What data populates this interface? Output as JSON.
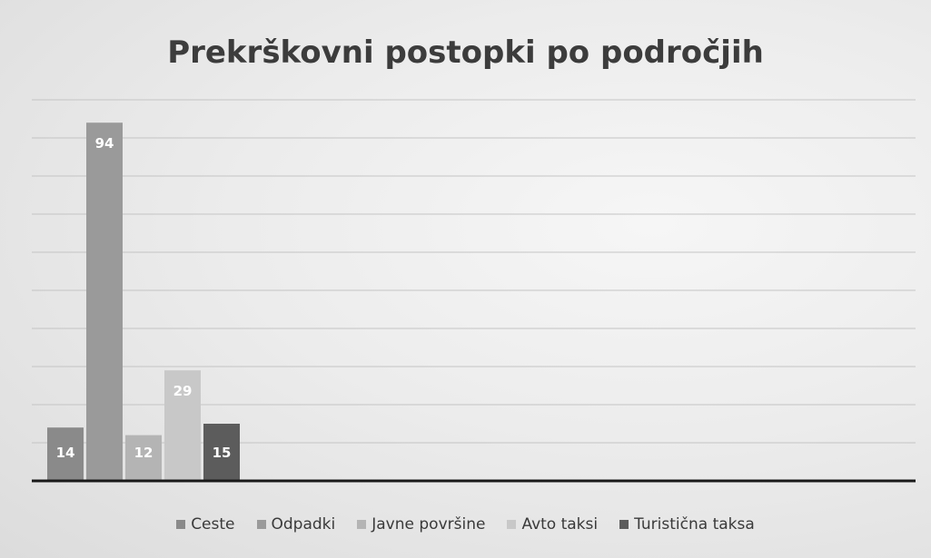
{
  "chart_data": {
    "type": "bar",
    "title": "Prekrškovni postopki po področjih",
    "xlabel": "",
    "ylabel": "",
    "ylim": [
      0,
      100
    ],
    "grid": true,
    "legend_position": "bottom",
    "categories": [
      ""
    ],
    "series": [
      {
        "name": "Ceste",
        "values": [
          14
        ],
        "color": "#8a8a8a"
      },
      {
        "name": "Odpadki",
        "values": [
          94
        ],
        "color": "#9a9a9a"
      },
      {
        "name": "Javne površine",
        "values": [
          12
        ],
        "color": "#b4b4b4"
      },
      {
        "name": "Avto taksi",
        "values": [
          29
        ],
        "color": "#c8c8c8"
      },
      {
        "name": "Turistična taksa",
        "values": [
          15
        ],
        "color": "#5c5c5c"
      }
    ]
  }
}
